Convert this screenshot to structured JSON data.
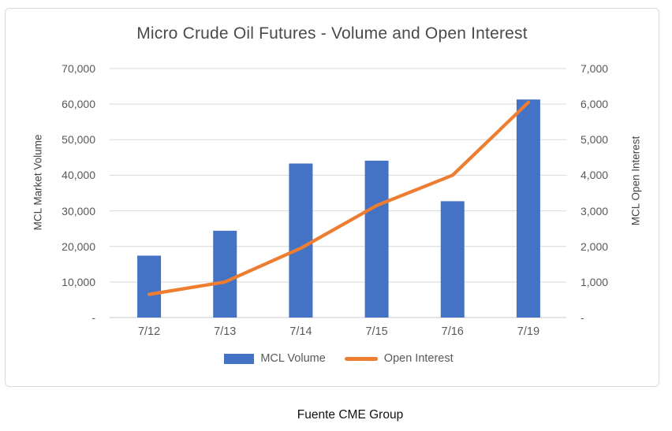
{
  "title": "Micro Crude Oil Futures - Volume and Open Interest",
  "caption": "Fuente CME Group",
  "colors": {
    "bar": "#4472C4",
    "line": "#ED7D31",
    "grid": "#D9D9D9",
    "axis_line": "#C9C9C9",
    "title_text": "#4A4A4A",
    "tick_text": "#595959",
    "caption_text": "#111111"
  },
  "chart_data": {
    "type": "bar",
    "subtype": "combo bar+line, dual axis",
    "title": "Micro Crude Oil Futures - Volume and Open Interest",
    "categories": [
      "7/12",
      "7/13",
      "7/14",
      "7/15",
      "7/16",
      "7/19"
    ],
    "series": [
      {
        "name": "MCL Volume",
        "type": "bar",
        "axis": "left",
        "color": "#4472C4",
        "values": [
          17400,
          24400,
          43300,
          44100,
          32700,
          61300
        ]
      },
      {
        "name": "Open Interest",
        "type": "line",
        "axis": "right",
        "color": "#ED7D31",
        "values": [
          650,
          1000,
          1950,
          3150,
          4000,
          6050
        ]
      }
    ],
    "left_axis": {
      "title": "MCL Market Volume",
      "min": 0,
      "max": 70000,
      "step": 10000,
      "tick_labels": [
        "-",
        "10,000",
        "20,000",
        "30,000",
        "40,000",
        "50,000",
        "60,000",
        "70,000"
      ]
    },
    "right_axis": {
      "title": "MCL Open Interest",
      "min": 0,
      "max": 7000,
      "step": 1000,
      "tick_labels": [
        "-",
        "1,000",
        "2,000",
        "3,000",
        "4,000",
        "5,000",
        "6,000",
        "7,000"
      ]
    },
    "grid": true,
    "legend_position": "bottom"
  }
}
